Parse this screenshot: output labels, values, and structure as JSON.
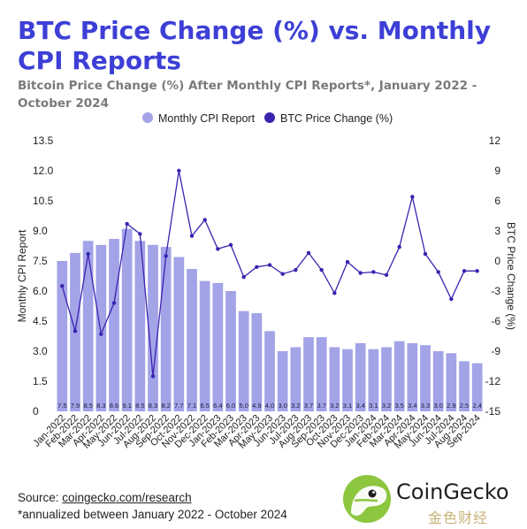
{
  "title": "BTC Price Change (%) vs. Monthly CPI Reports",
  "subtitle": "Bitcoin Price Change (%) After Monthly CPI Reports*, January 2022 - October 2024",
  "footer": {
    "source_label": "Source: ",
    "source_link": "coingecko.com/research",
    "note": "*annualized between January 2022 - October 2024"
  },
  "logo": {
    "name": "CoinGecko",
    "watermark": "金色财经"
  },
  "colors": {
    "title": "#3d3fd6",
    "bar": "#a3a3e8",
    "line": "#3b23b0",
    "subtitle": "#7a7a7a"
  },
  "chart_data": {
    "type": "bar+line",
    "categories": [
      "Jan-2022",
      "Feb-2022",
      "Mar-2022",
      "Apr-2022",
      "May-2022",
      "Jun-2022",
      "Jul-2022",
      "Aug-2022",
      "Sep-2022",
      "Oct-2022",
      "Nov-2022",
      "Dec-2022",
      "Jan-2023",
      "Feb-2023",
      "Mar-2023",
      "Apr-2023",
      "May-2023",
      "Jun-2023",
      "Jul-2023",
      "Aug-2023",
      "Sep-2023",
      "Oct-2023",
      "Nov-2023",
      "Dec-2023",
      "Jan-2024",
      "Feb-2024",
      "Mar-2024",
      "Apr-2024",
      "May-2024",
      "Jun-2024",
      "Jul-2024",
      "Aug-2024",
      "Sep-2024"
    ],
    "series": [
      {
        "name": "Monthly CPI Report",
        "type": "bar",
        "axis": "left",
        "values": [
          7.5,
          7.9,
          8.5,
          8.3,
          8.6,
          9.1,
          8.5,
          8.3,
          8.2,
          7.7,
          7.1,
          6.5,
          6.4,
          6.0,
          5.0,
          4.9,
          4.0,
          3.0,
          3.2,
          3.7,
          3.7,
          3.2,
          3.1,
          3.4,
          3.1,
          3.2,
          3.5,
          3.4,
          3.3,
          3.0,
          2.9,
          2.5,
          2.4
        ],
        "labels": [
          "7.5",
          "7.9",
          "8.5",
          "8.3",
          "8.6",
          "9.1",
          "8.5",
          "8.3",
          "8.2",
          "7.7",
          "7.1",
          "6.5",
          "6.4",
          "6.0",
          "5.0",
          "4.9",
          "4.0",
          "3.0",
          "3.2",
          "3.7",
          "3.7",
          "3.2",
          "3.1",
          "3.4",
          "3.1",
          "3.2",
          "3.5",
          "3.4",
          "3.3",
          "3.0",
          "2.9",
          "2.5",
          "2.4"
        ]
      },
      {
        "name": "BTC Price Change (%)",
        "type": "line",
        "axis": "right",
        "values": [
          -2.5,
          -7.0,
          0.7,
          -7.3,
          -4.2,
          3.7,
          2.7,
          -11.5,
          0.5,
          9.0,
          2.5,
          4.1,
          1.2,
          1.6,
          -1.6,
          -0.6,
          -0.4,
          -1.3,
          -0.9,
          0.8,
          -0.9,
          -3.2,
          -0.1,
          -1.2,
          -1.1,
          -1.4,
          1.4,
          6.4,
          0.7,
          -1.1,
          -3.8,
          -1.0,
          -1.0
        ]
      }
    ],
    "y_left": {
      "label": "Monthly CPI Report",
      "ticks": [
        "0",
        "1.5",
        "3.0",
        "4.5",
        "6.0",
        "7.5",
        "9.0",
        "10.5",
        "12.0",
        "13.5"
      ],
      "range": [
        0,
        13.5
      ]
    },
    "y_right": {
      "label": "BTC Price Change (%)",
      "ticks": [
        "-15",
        "-12",
        "-9",
        "-6",
        "-3",
        "0",
        "3",
        "6",
        "9",
        "12"
      ],
      "range": [
        -15,
        12
      ]
    },
    "legend_position": "top-center",
    "grid": false
  }
}
